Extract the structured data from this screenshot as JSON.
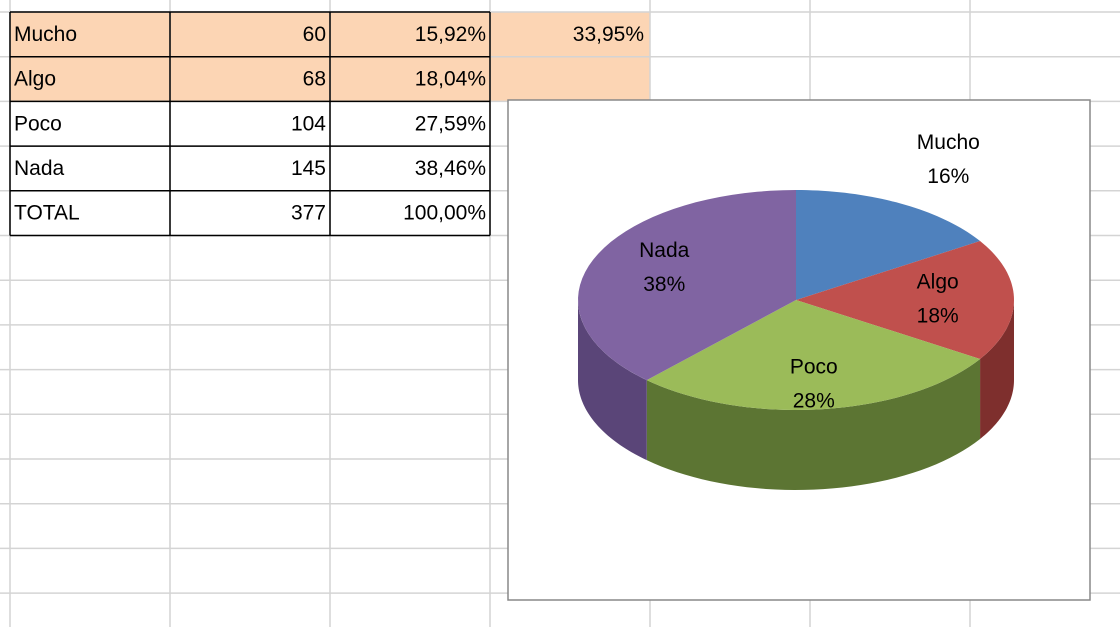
{
  "table": {
    "rows": [
      [
        "Mucho",
        "60",
        "15,92%"
      ],
      [
        "Algo",
        "68",
        "18,04%"
      ],
      [
        "Poco",
        "104",
        "27,59%"
      ],
      [
        "Nada",
        "145",
        "38,46%"
      ],
      [
        "TOTAL",
        "377",
        "100,00%"
      ]
    ],
    "extra_cell": "33,95%"
  },
  "chart_data": {
    "type": "pie",
    "categories": [
      "Mucho",
      "Algo",
      "Poco",
      "Nada"
    ],
    "values": [
      16,
      18,
      28,
      38
    ],
    "value_labels": [
      "16%",
      "18%",
      "28%",
      "38%"
    ],
    "colors": [
      "#4f81bd",
      "#c0504d",
      "#9bbb59",
      "#8064a2"
    ],
    "side_colors": [
      "#3a6190",
      "#7e2f2d",
      "#5c7533",
      "#5a4578"
    ]
  }
}
